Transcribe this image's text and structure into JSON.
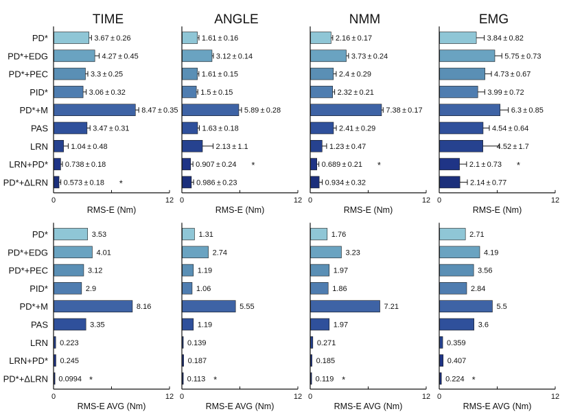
{
  "chart_data": {
    "type": "bar",
    "orientation": "horizontal",
    "categories": [
      "PD*",
      "PD*+EDG",
      "PD*+PEC",
      "PID*",
      "PD*+M",
      "PAS",
      "LRN",
      "LRN+PD*",
      "PD*+ΔLRN"
    ],
    "bar_colors": [
      "#8fc6d6",
      "#6aa3c1",
      "#5a8fb5",
      "#4f7db0",
      "#3e63a5",
      "#2f509b",
      "#26428f",
      "#1f3486",
      "#1b2f7b"
    ],
    "star_color": "#e8241f",
    "xlim": [
      0,
      12
    ],
    "x_ticks": [
      "0",
      "12"
    ],
    "top_row": {
      "xlabel": "RMS-E (Nm)",
      "panels": [
        {
          "title": "TIME",
          "values": [
            3.67,
            4.27,
            3.3,
            3.06,
            8.47,
            3.47,
            1.04,
            0.738,
            0.573
          ],
          "errors": [
            0.26,
            0.45,
            0.25,
            0.32,
            0.35,
            0.31,
            0.48,
            0.18,
            0.18
          ],
          "labels": [
            "3.67 ± 0.26",
            "4.27 ± 0.45",
            "3.3 ± 0.25",
            "3.06 ± 0.32",
            "8.47 ± 0.35",
            "3.47 ± 0.31",
            "1.04 ± 0.48",
            "0.738 ± 0.18",
            "0.573 ± 0.18"
          ],
          "star_index": 8
        },
        {
          "title": "ANGLE",
          "values": [
            1.61,
            3.12,
            1.61,
            1.5,
            5.89,
            1.63,
            2.13,
            0.907,
            0.986
          ],
          "errors": [
            0.16,
            0.14,
            0.15,
            0.15,
            0.28,
            0.18,
            1.1,
            0.24,
            0.23
          ],
          "labels": [
            "1.61 ± 0.16",
            "3.12 ± 0.14",
            "1.61 ± 0.15",
            "1.5 ± 0.15",
            "5.89 ± 0.28",
            "1.63 ± 0.18",
            "2.13 ± 1.1",
            "0.907 ± 0.24",
            "0.986 ± 0.23"
          ],
          "star_index": 7
        },
        {
          "title": "NMM",
          "values": [
            2.16,
            3.73,
            2.4,
            2.32,
            7.38,
            2.41,
            1.23,
            0.689,
            0.934
          ],
          "errors": [
            0.17,
            0.24,
            0.29,
            0.21,
            0.17,
            0.29,
            0.47,
            0.21,
            0.32
          ],
          "labels": [
            "2.16 ± 0.17",
            "3.73 ± 0.24",
            "2.4 ± 0.29",
            "2.32 ± 0.21",
            "7.38 ± 0.17",
            "2.41 ± 0.29",
            "1.23 ± 0.47",
            "0.689 ± 0.21",
            "0.934 ± 0.32"
          ],
          "star_index": 7
        },
        {
          "title": "EMG",
          "values": [
            3.84,
            5.75,
            4.73,
            3.99,
            6.3,
            4.54,
            4.52,
            2.1,
            2.14
          ],
          "errors": [
            0.82,
            0.73,
            0.67,
            0.72,
            0.85,
            0.64,
            1.7,
            0.73,
            0.77
          ],
          "labels": [
            "3.84 ± 0.82",
            "5.75 ± 0.73",
            "4.73 ± 0.67",
            "3.99 ± 0.72",
            "6.3 ± 0.85",
            "4.54 ± 0.64",
            "4.52 ± 1.7",
            "2.1 ± 0.73",
            "2.14 ± 0.77"
          ],
          "star_index": 7
        }
      ]
    },
    "bottom_row": {
      "xlabel": "RMS-E AVG (Nm)",
      "panels": [
        {
          "values": [
            3.53,
            4.01,
            3.12,
            2.9,
            8.16,
            3.35,
            0.223,
            0.245,
            0.0994
          ],
          "labels": [
            "3.53",
            "4.01",
            "3.12",
            "2.9",
            "8.16",
            "3.35",
            "0.223",
            "0.245",
            "0.0994"
          ],
          "star_index": 8
        },
        {
          "values": [
            1.31,
            2.74,
            1.19,
            1.06,
            5.55,
            1.19,
            0.139,
            0.187,
            0.113
          ],
          "labels": [
            "1.31",
            "2.74",
            "1.19",
            "1.06",
            "5.55",
            "1.19",
            "0.139",
            "0.187",
            "0.113"
          ],
          "star_index": 8
        },
        {
          "values": [
            1.76,
            3.23,
            1.97,
            1.86,
            7.21,
            1.97,
            0.271,
            0.185,
            0.119
          ],
          "labels": [
            "1.76",
            "3.23",
            "1.97",
            "1.86",
            "7.21",
            "1.97",
            "0.271",
            "0.185",
            "0.119"
          ],
          "star_index": 8
        },
        {
          "values": [
            2.71,
            4.19,
            3.56,
            2.84,
            5.5,
            3.6,
            0.359,
            0.407,
            0.224
          ],
          "labels": [
            "2.71",
            "4.19",
            "3.56",
            "2.84",
            "5.5",
            "3.6",
            "0.359",
            "0.407",
            "0.224"
          ],
          "star_index": 8
        }
      ]
    }
  }
}
